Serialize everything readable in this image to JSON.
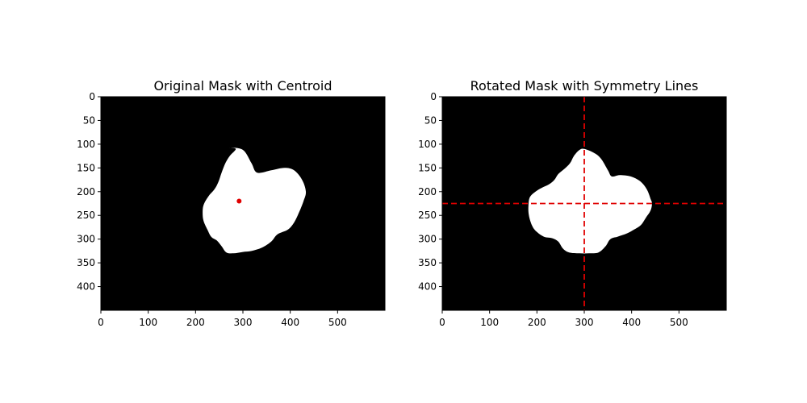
{
  "chart_data": [
    {
      "type": "image",
      "title": "Original Mask with Centroid",
      "xlim": [
        0,
        600
      ],
      "ylim": [
        450,
        0
      ],
      "xticks": [
        0,
        100,
        200,
        300,
        400,
        500
      ],
      "yticks": [
        0,
        50,
        100,
        150,
        200,
        250,
        300,
        350,
        400
      ],
      "background_color": "#000000",
      "mask_color": "#ffffff",
      "mask_outline": [
        [
          270,
          107
        ],
        [
          300,
          112
        ],
        [
          318,
          140
        ],
        [
          330,
          160
        ],
        [
          360,
          155
        ],
        [
          388,
          150
        ],
        [
          408,
          155
        ],
        [
          425,
          175
        ],
        [
          433,
          200
        ],
        [
          428,
          220
        ],
        [
          418,
          245
        ],
        [
          408,
          265
        ],
        [
          395,
          280
        ],
        [
          373,
          290
        ],
        [
          360,
          305
        ],
        [
          340,
          318
        ],
        [
          318,
          325
        ],
        [
          300,
          327
        ],
        [
          280,
          330
        ],
        [
          265,
          328
        ],
        [
          255,
          315
        ],
        [
          245,
          303
        ],
        [
          233,
          295
        ],
        [
          225,
          280
        ],
        [
          217,
          262
        ],
        [
          215,
          245
        ],
        [
          217,
          228
        ],
        [
          227,
          210
        ],
        [
          240,
          195
        ],
        [
          248,
          180
        ],
        [
          255,
          160
        ],
        [
          263,
          140
        ],
        [
          272,
          125
        ],
        [
          285,
          110
        ]
      ],
      "centroid": {
        "x": 292,
        "y": 220,
        "color": "#e00000"
      }
    },
    {
      "type": "image",
      "title": "Rotated Mask with Symmetry Lines",
      "xlim": [
        0,
        600
      ],
      "ylim": [
        450,
        0
      ],
      "xticks": [
        0,
        100,
        200,
        300,
        400,
        500
      ],
      "yticks": [
        0,
        50,
        100,
        150,
        200,
        250,
        300,
        350,
        400
      ],
      "background_color": "#000000",
      "mask_color": "#ffffff",
      "mask_outline": [
        [
          300,
          110
        ],
        [
          320,
          118
        ],
        [
          335,
          130
        ],
        [
          350,
          155
        ],
        [
          358,
          168
        ],
        [
          375,
          165
        ],
        [
          398,
          168
        ],
        [
          418,
          178
        ],
        [
          432,
          195
        ],
        [
          440,
          215
        ],
        [
          443,
          225
        ],
        [
          440,
          240
        ],
        [
          430,
          255
        ],
        [
          420,
          270
        ],
        [
          405,
          280
        ],
        [
          390,
          288
        ],
        [
          370,
          295
        ],
        [
          355,
          300
        ],
        [
          345,
          315
        ],
        [
          330,
          328
        ],
        [
          310,
          330
        ],
        [
          290,
          330
        ],
        [
          268,
          328
        ],
        [
          255,
          320
        ],
        [
          245,
          305
        ],
        [
          232,
          298
        ],
        [
          215,
          295
        ],
        [
          200,
          285
        ],
        [
          190,
          272
        ],
        [
          183,
          250
        ],
        [
          182,
          230
        ],
        [
          185,
          212
        ],
        [
          197,
          200
        ],
        [
          210,
          192
        ],
        [
          225,
          185
        ],
        [
          237,
          175
        ],
        [
          245,
          163
        ],
        [
          258,
          152
        ],
        [
          270,
          140
        ],
        [
          278,
          125
        ],
        [
          290,
          112
        ]
      ],
      "symmetry_lines": {
        "vertical_x": 300,
        "horizontal_y": 225,
        "color": "#e00000",
        "style": "dashed"
      }
    }
  ]
}
